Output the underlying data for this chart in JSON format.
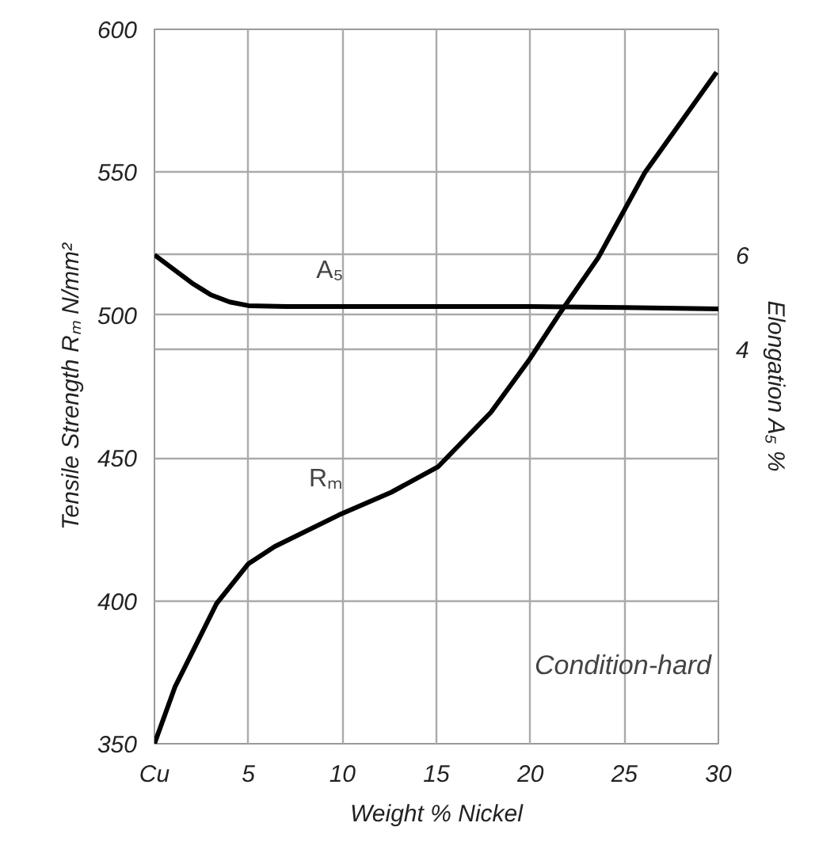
{
  "chart_data": {
    "type": "line",
    "xlabel": "Weight % Nickel",
    "ylabel": "Tensile Strength Rₘ N/mm²",
    "y2label": "Elongation A₅ %",
    "xlim": [
      0,
      30
    ],
    "xticks": [
      {
        "value": 0,
        "label": "Cu"
      },
      5,
      10,
      15,
      20,
      25,
      30
    ],
    "ylim": [
      350,
      600
    ],
    "yticks": [
      350,
      400,
      450,
      500,
      550,
      600
    ],
    "y2lim": [
      -4.4,
      10.8
    ],
    "y2ticks": [
      4,
      6
    ],
    "grid": true,
    "line_style": "solid",
    "marker": "none",
    "series": [
      {
        "name": "A₅",
        "color": "#000000",
        "axis": "y2",
        "x": [
          0,
          1,
          2,
          3,
          4,
          5,
          7,
          10,
          15,
          20,
          25,
          30
        ],
        "values": [
          6.0,
          5.7,
          5.4,
          5.15,
          5.0,
          4.92,
          4.9,
          4.9,
          4.9,
          4.9,
          4.88,
          4.85
        ]
      },
      {
        "name": "Rₘ",
        "color": "#000000",
        "x": [
          0,
          1.1,
          3.3,
          5.0,
          6.4,
          9.8,
          12.6,
          15.1,
          17.9,
          19.9,
          21.6,
          23.6,
          26.1,
          29.9
        ],
        "values": [
          350,
          370,
          399,
          413,
          419,
          430,
          438,
          447,
          466,
          484,
          501,
          520,
          550,
          585
        ]
      }
    ],
    "annotations": [
      "Condition-hard"
    ]
  }
}
